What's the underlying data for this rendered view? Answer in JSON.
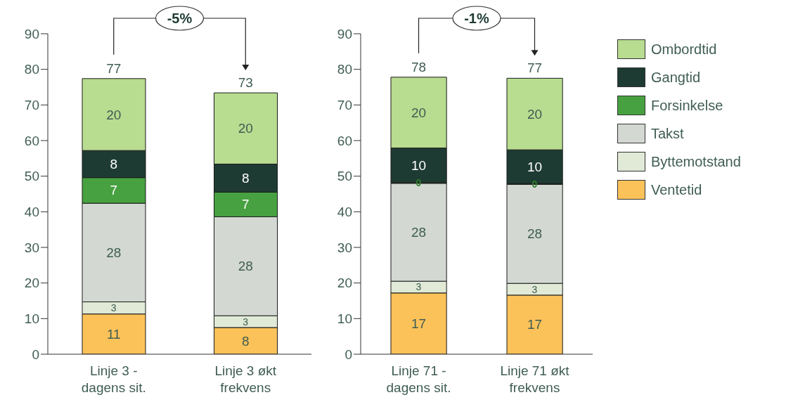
{
  "chart_data": [
    {
      "type": "bar",
      "stacked": true,
      "categories": [
        "Linje 3 - dagens sit.",
        "Linje 3 økt frekvens"
      ],
      "ylim": [
        0,
        90
      ],
      "yticks": [
        0,
        10,
        20,
        30,
        40,
        50,
        60,
        70,
        80,
        90
      ],
      "grid": false,
      "legend": false,
      "totals": [
        "77",
        "73"
      ],
      "annotations": [
        "-5%"
      ],
      "series": [
        {
          "color": "#fcc25a",
          "values": [
            11.3,
            7.5
          ],
          "value_labels": [
            "11",
            "8"
          ]
        },
        {
          "color": "#e0ead7",
          "values": [
            3.4,
            3.3
          ],
          "value_labels": [
            "3",
            "3"
          ]
        },
        {
          "color": "#d3d8d2",
          "values": [
            27.7,
            27.8
          ],
          "value_labels": [
            "28",
            "28"
          ]
        },
        {
          "color": "#47a140",
          "values": [
            7.2,
            6.9
          ],
          "value_labels": [
            "7",
            "7"
          ]
        },
        {
          "color": "#1e3b33",
          "values": [
            7.6,
            7.9
          ],
          "value_labels": [
            "8",
            "8"
          ]
        },
        {
          "color": "#b8dc90",
          "values": [
            20.2,
            20.0
          ],
          "value_labels": [
            "20",
            "20"
          ]
        }
      ]
    },
    {
      "type": "bar",
      "stacked": true,
      "categories": [
        "Linje 71 - dagens sit.",
        "Linje 71 økt frekvens"
      ],
      "ylim": [
        0,
        90
      ],
      "yticks": [
        0,
        10,
        20,
        30,
        40,
        50,
        60,
        70,
        80,
        90
      ],
      "grid": false,
      "legend": "right",
      "totals": [
        "78",
        "77"
      ],
      "annotations": [
        "-1%"
      ],
      "series": [
        {
          "name": "Ventetid",
          "color": "#fcc25a",
          "values": [
            17.2,
            16.6
          ],
          "value_labels": [
            "17",
            "17"
          ]
        },
        {
          "name": "Byttemotstand",
          "color": "#e0ead7",
          "values": [
            3.3,
            3.3
          ],
          "value_labels": [
            "3",
            "3"
          ]
        },
        {
          "name": "Takst",
          "color": "#d3d8d2",
          "values": [
            27.5,
            27.8
          ],
          "value_labels": [
            "28",
            "28"
          ]
        },
        {
          "name": "Forsinkelse",
          "color": "#47a140",
          "values": [
            0.2,
            0.2
          ],
          "value_labels": [
            "0",
            "0"
          ]
        },
        {
          "name": "Gangtid",
          "color": "#1e3b33",
          "values": [
            9.7,
            9.5
          ],
          "value_labels": [
            "10",
            "10"
          ]
        },
        {
          "name": "Ombordtid",
          "color": "#b8dc90",
          "values": [
            19.9,
            20.1
          ],
          "value_labels": [
            "20",
            "20"
          ]
        }
      ]
    }
  ]
}
